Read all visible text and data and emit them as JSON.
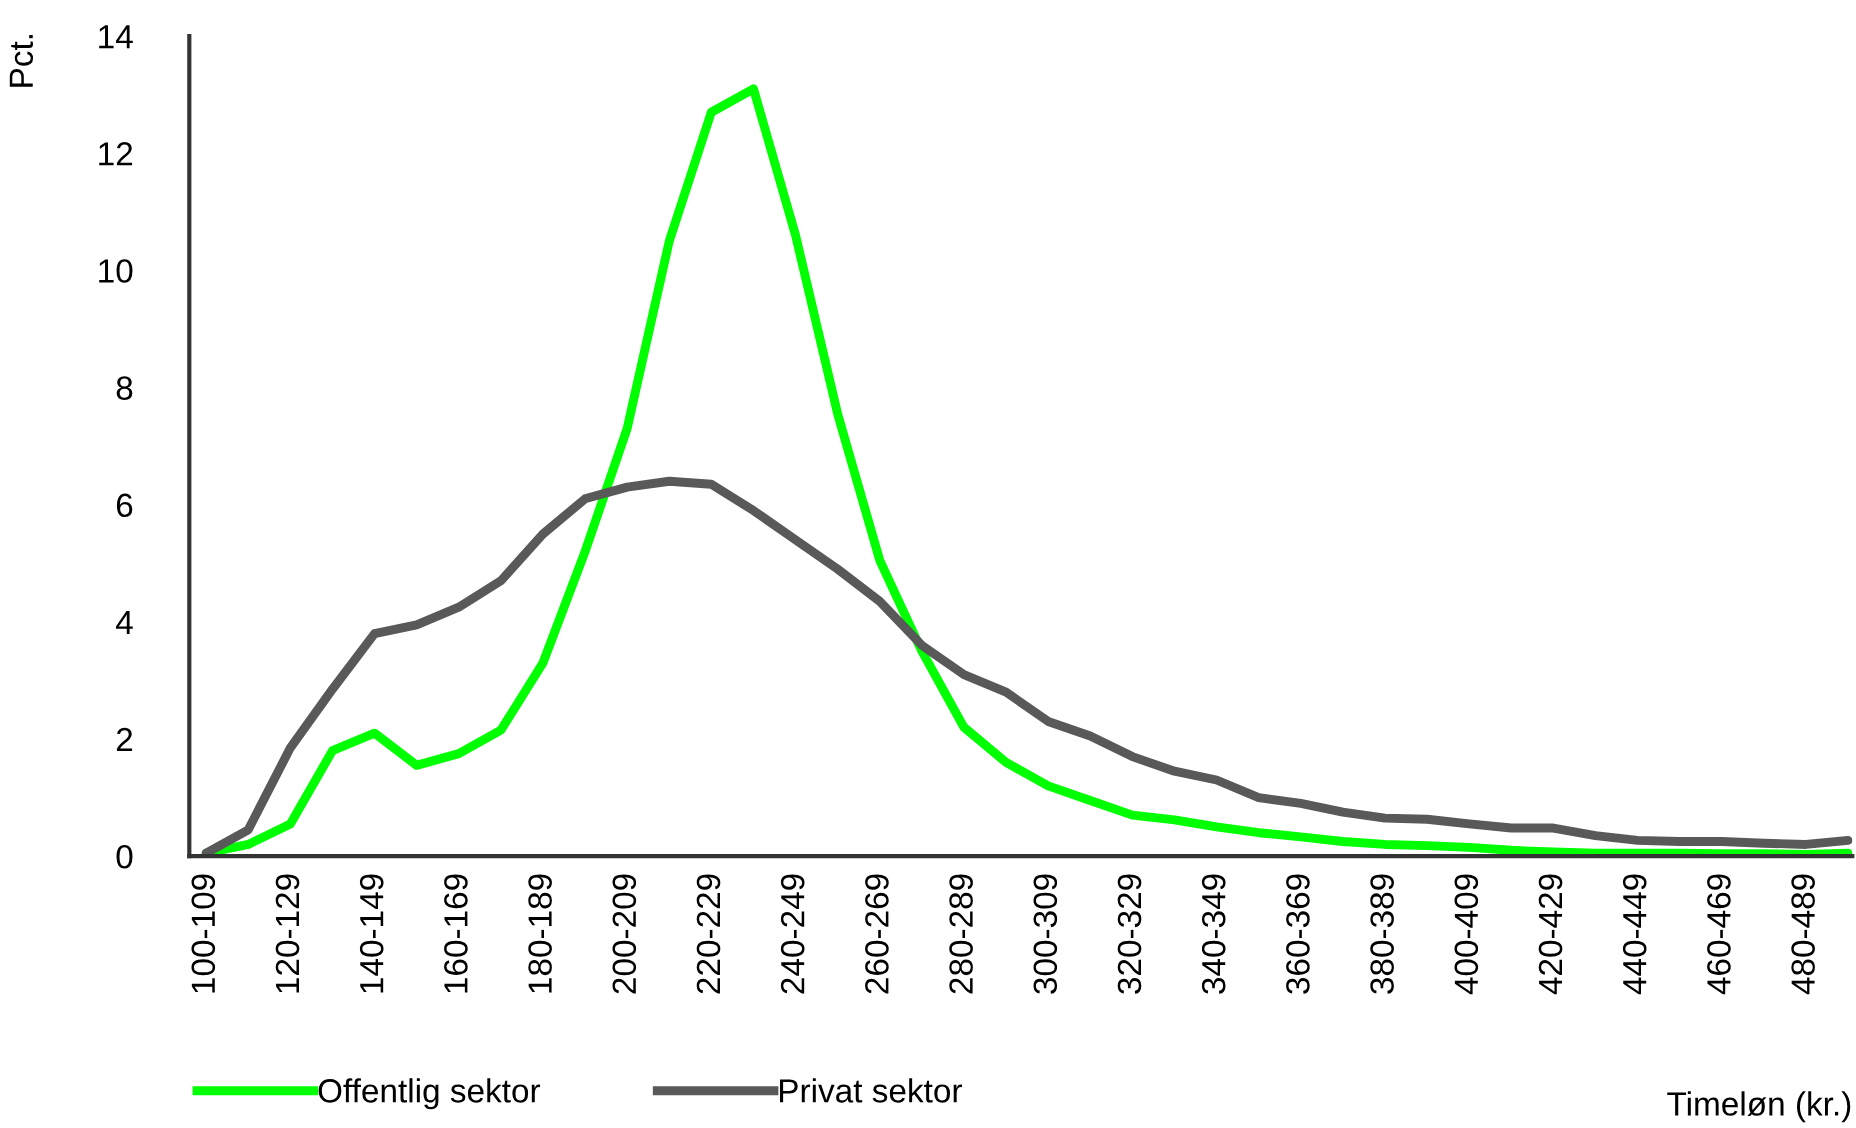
{
  "chart_data": {
    "type": "line",
    "xlabel": "Timeløn (kr.)",
    "ylabel": "Pct.",
    "categories": [
      "100-109",
      null,
      "120-129",
      null,
      "140-149",
      null,
      "160-169",
      null,
      "180-189",
      null,
      "200-209",
      null,
      "220-229",
      null,
      "240-249",
      null,
      "260-269",
      null,
      "280-289",
      null,
      "300-309",
      null,
      "320-329",
      null,
      "340-349",
      null,
      "360-369",
      null,
      "380-389",
      null,
      "400-409",
      null,
      "420-429",
      null,
      "440-449",
      null,
      "460-469",
      null,
      "480-489",
      null
    ],
    "series": [
      {
        "name": "Offentlig sektor",
        "color": "#00ff00",
        "values": [
          0.05,
          0.2,
          0.55,
          1.8,
          2.1,
          1.55,
          1.75,
          2.15,
          3.3,
          5.2,
          7.3,
          10.5,
          12.7,
          13.1,
          10.6,
          7.55,
          5.05,
          3.5,
          2.2,
          1.6,
          1.2,
          0.95,
          0.7,
          0.62,
          0.5,
          0.4,
          0.33,
          0.25,
          0.2,
          0.18,
          0.15,
          0.1,
          0.07,
          0.05,
          0.05,
          0.05,
          0.04,
          0.04,
          0.03,
          0.05
        ]
      },
      {
        "name": "Privat sektor",
        "color": "#595959",
        "values": [
          0.05,
          0.45,
          1.85,
          2.85,
          3.8,
          3.95,
          4.25,
          4.7,
          5.5,
          6.1,
          6.3,
          6.4,
          6.35,
          5.9,
          5.4,
          4.9,
          4.35,
          3.6,
          3.1,
          2.8,
          2.3,
          2.05,
          1.7,
          1.45,
          1.3,
          1.0,
          0.9,
          0.75,
          0.65,
          0.63,
          0.55,
          0.48,
          0.48,
          0.35,
          0.27,
          0.25,
          0.25,
          0.22,
          0.2,
          0.27
        ]
      }
    ],
    "ylim": [
      0,
      14
    ],
    "yticks": [
      0,
      2,
      4,
      6,
      8,
      10,
      12,
      14
    ],
    "grid": false,
    "legend": "bottom",
    "marker": "none",
    "line_style": "solid"
  }
}
